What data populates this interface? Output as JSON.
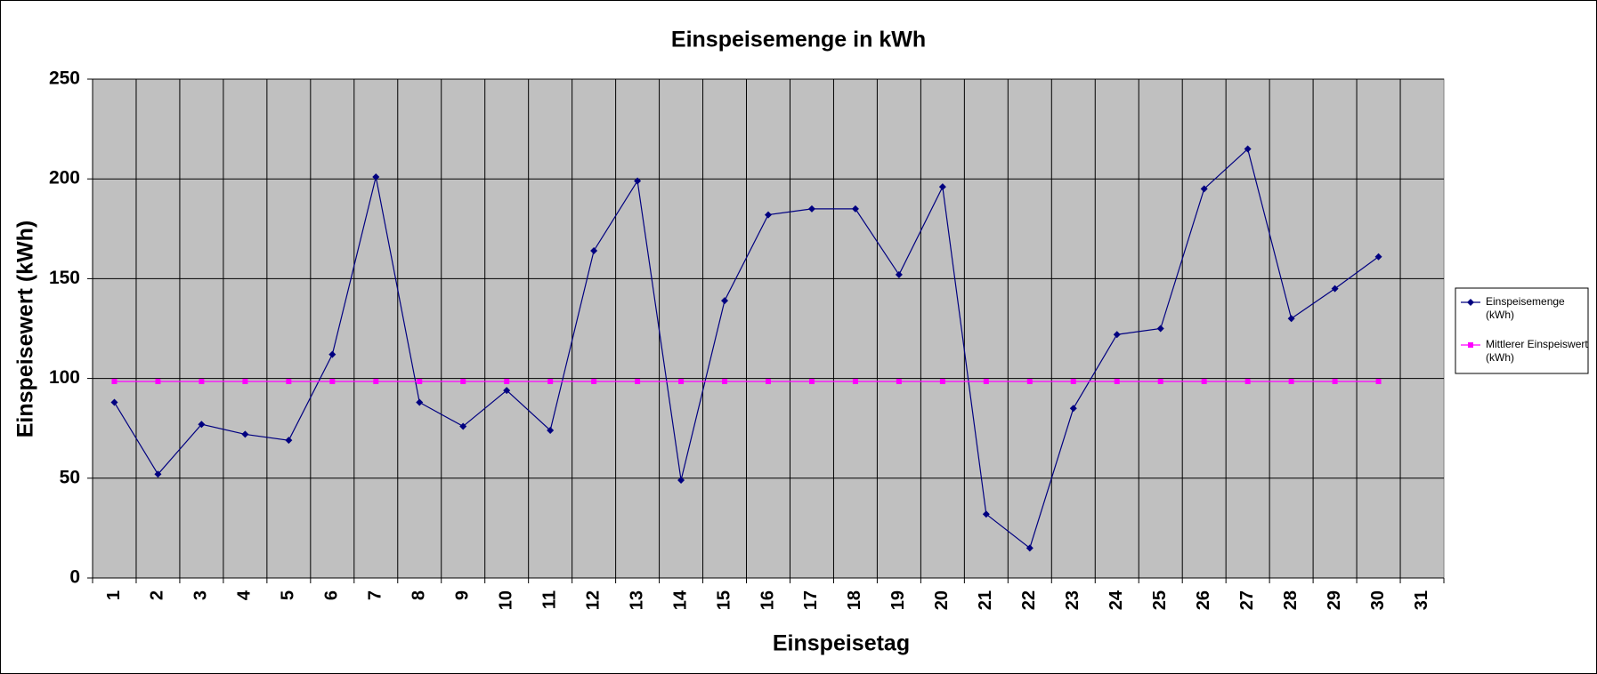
{
  "chart_data": {
    "type": "line",
    "title": "Einspeisemenge in kWh",
    "x_label": "Einspeisetag",
    "y_label": "Einspeisewert  (kWh)",
    "categories": [
      "1",
      "2",
      "3",
      "4",
      "5",
      "6",
      "7",
      "8",
      "9",
      "10",
      "11",
      "12",
      "13",
      "14",
      "15",
      "16",
      "17",
      "18",
      "19",
      "20",
      "21",
      "22",
      "23",
      "24",
      "25",
      "26",
      "27",
      "28",
      "29",
      "30",
      "31"
    ],
    "series": [
      {
        "name": "Einspeisemenge (kWh)",
        "color": "#000080",
        "marker": "diamond",
        "values": [
          88,
          52,
          77,
          72,
          69,
          112,
          201,
          88,
          76,
          94,
          74,
          164,
          199,
          49,
          139,
          182,
          185,
          185,
          152,
          196,
          32,
          15,
          85,
          122,
          125,
          195,
          215,
          130,
          145,
          161,
          null
        ]
      },
      {
        "name": "Mittlerer Einspeiswert (kWh)",
        "color": "#ff00ff",
        "marker": "square",
        "values": [
          98.5,
          98.5,
          98.5,
          98.5,
          98.5,
          98.5,
          98.5,
          98.5,
          98.5,
          98.5,
          98.5,
          98.5,
          98.5,
          98.5,
          98.5,
          98.5,
          98.5,
          98.5,
          98.5,
          98.5,
          98.5,
          98.5,
          98.5,
          98.5,
          98.5,
          98.5,
          98.5,
          98.5,
          98.5,
          98.5,
          null
        ]
      }
    ],
    "ylim": [
      0,
      250
    ],
    "yticks": [
      0,
      50,
      100,
      150,
      200,
      250
    ],
    "grid": true,
    "legend": "right",
    "plot_background": "#c0c0c0"
  }
}
